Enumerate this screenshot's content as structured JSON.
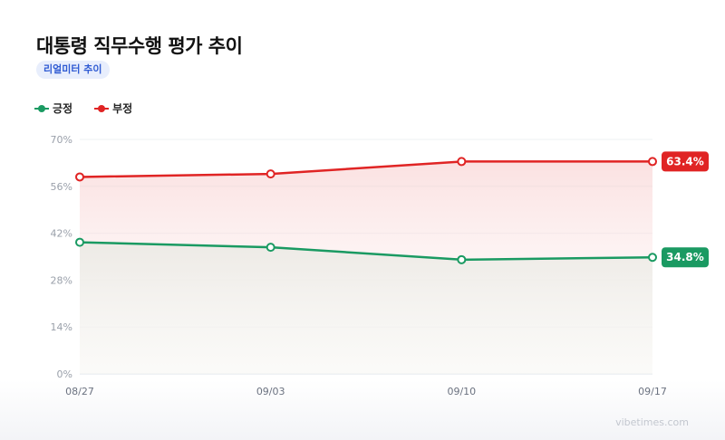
{
  "header": {
    "title": "대통령 직무수행 평가 추이",
    "badge": "리얼미터 추이"
  },
  "legend": [
    {
      "label": "긍정",
      "color": "#1a9a62"
    },
    {
      "label": "부정",
      "color": "#e02424"
    }
  ],
  "watermark": "vibetimes.com",
  "chart_data": {
    "type": "line",
    "categories": [
      "08/27",
      "09/03",
      "09/10",
      "09/17"
    ],
    "series": [
      {
        "name": "긍정",
        "color": "#1a9a62",
        "values": [
          39.3,
          37.8,
          34.1,
          34.8
        ]
      },
      {
        "name": "부정",
        "color": "#e02424",
        "values": [
          58.8,
          59.7,
          63.4,
          63.4
        ]
      }
    ],
    "yticks": [
      0,
      14,
      28,
      42,
      56,
      70
    ],
    "ytick_labels": [
      "0%",
      "14%",
      "28%",
      "42%",
      "56%",
      "70%"
    ],
    "ylim": [
      0,
      70
    ],
    "end_labels": [
      "34.8%",
      "63.4%"
    ],
    "grid": true
  }
}
